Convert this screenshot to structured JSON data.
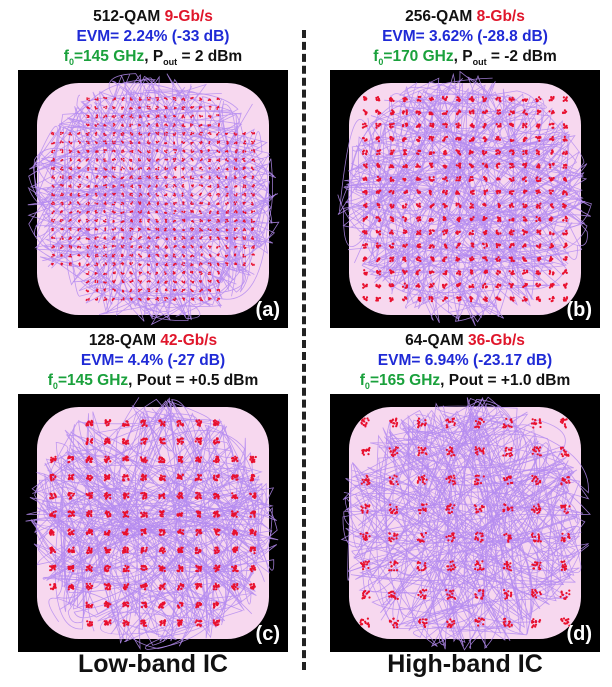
{
  "chart_data": [
    {
      "type": "scatter",
      "panel_label": "(a)",
      "modulation": "512-QAM",
      "rate": "9-Gb/s",
      "evm": "EVM= 2.24% (-33 dB)",
      "f0_label": "f",
      "f0_sub": "0",
      "f0_value": "=145 GHz",
      "pout_prefix": ", P",
      "pout_sub": "out",
      "pout_value": " = 2 dBm",
      "grid_size": 24,
      "cross_corner_cut": 4,
      "colors": {
        "points": "#e8102e",
        "traces": "#b58cf0",
        "cloud": "#f7d8ef",
        "background": "#000000"
      }
    },
    {
      "type": "scatter",
      "panel_label": "(b)",
      "modulation": "256-QAM",
      "rate": "8-Gb/s",
      "evm": "EVM= 3.62% (-28.8 dB)",
      "f0_label": "f",
      "f0_sub": "0",
      "f0_value": "=170 GHz",
      "pout_prefix": ", P",
      "pout_sub": "out",
      "pout_value": " = -2 dBm",
      "grid_size": 16,
      "cross_corner_cut": 0,
      "colors": {
        "points": "#e8102e",
        "traces": "#b58cf0",
        "cloud": "#f7d8ef",
        "background": "#000000"
      }
    },
    {
      "type": "scatter",
      "panel_label": "(c)",
      "modulation": "128-QAM",
      "rate": "42-Gb/s",
      "evm": "EVM= 4.4% (-27 dB)",
      "f0_label": "f",
      "f0_sub": "0",
      "f0_value": "=145 GHz",
      "pout_prefix": ", Pout",
      "pout_sub": "",
      "pout_value": " = +0.5 dBm",
      "grid_size": 12,
      "cross_corner_cut": 2,
      "colors": {
        "points": "#e8102e",
        "traces": "#b58cf0",
        "cloud": "#f7d8ef",
        "background": "#000000"
      }
    },
    {
      "type": "scatter",
      "panel_label": "(d)",
      "modulation": "64-QAM",
      "rate": "36-Gb/s",
      "evm": "EVM= 6.94% (-23.17 dB)",
      "f0_label": "f",
      "f0_sub": "0",
      "f0_value": "=165 GHz",
      "pout_prefix": ", Pout",
      "pout_sub": "",
      "pout_value": " = +1.0 dBm",
      "grid_size": 8,
      "cross_corner_cut": 0,
      "colors": {
        "points": "#e8102e",
        "traces": "#b58cf0",
        "cloud": "#f7d8ef",
        "background": "#000000"
      }
    }
  ],
  "bands": {
    "left": "Low-band IC",
    "right": "High-band IC"
  }
}
